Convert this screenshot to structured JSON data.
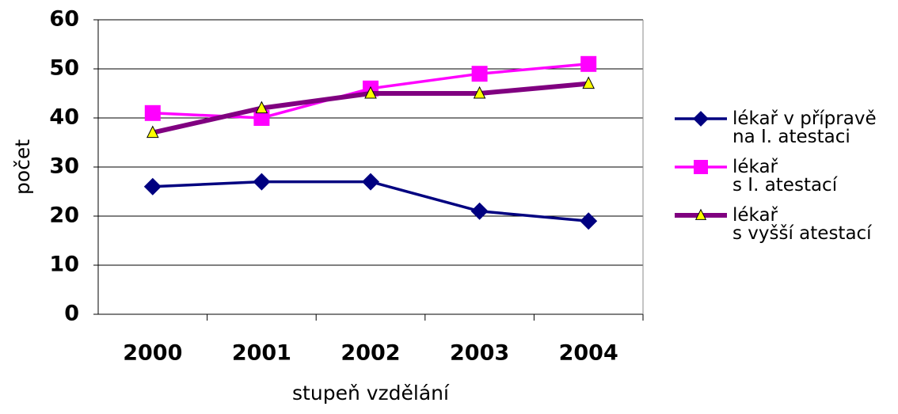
{
  "chart_data": {
    "type": "line",
    "categories": [
      "2000",
      "2001",
      "2002",
      "2003",
      "2004"
    ],
    "series": [
      {
        "name": "lékař v přípravě\nna I. atestaci",
        "color": "#000080",
        "marker": "diamond",
        "values": [
          26,
          27,
          27,
          21,
          19
        ]
      },
      {
        "name": "lékař\ns I. atestací",
        "color": "#ff00ff",
        "marker": "square",
        "values": [
          41,
          40,
          46,
          49,
          51
        ]
      },
      {
        "name": "lékař\ns vyšší atestací",
        "color": "#800080",
        "marker": "triangle",
        "marker_fill": "#ffff00",
        "values": [
          37,
          42,
          45,
          45,
          47
        ]
      }
    ],
    "xlabel": "stupeň vzdělání",
    "ylabel": "počet",
    "ylim": [
      0,
      60
    ],
    "yticks": [
      0,
      10,
      20,
      30,
      40,
      50,
      60
    ],
    "grid": true,
    "legend": "right"
  }
}
